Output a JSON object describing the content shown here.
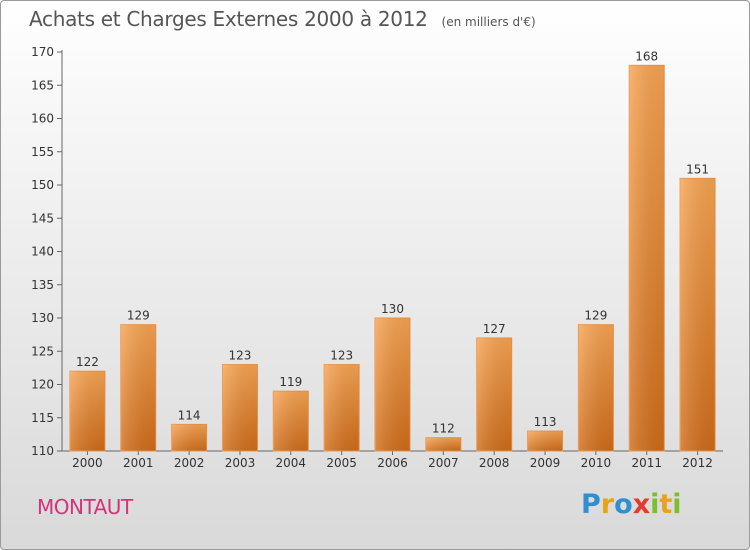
{
  "title": "Achats et Charges Externes 2000 à 2012",
  "unit": "(en milliers d'€)",
  "commune": "MONTAUT",
  "logo": {
    "text": "Proxiti",
    "colors": [
      "#2f8fd0",
      "#e8a317",
      "#2f8fd0",
      "#e8392b",
      "#7bbf2a",
      "#e8a317",
      "#7bbf2a"
    ]
  },
  "colors": {
    "bar_top": "#f7a452",
    "bar_bottom": "#d06c18",
    "axis": "#666666",
    "grid": "#ffffff",
    "text": "#333333"
  },
  "chart_data": {
    "type": "bar",
    "title": "Achats et Charges Externes 2000 à 2012",
    "categories": [
      "2000",
      "2001",
      "2002",
      "2003",
      "2004",
      "2005",
      "2006",
      "2007",
      "2008",
      "2009",
      "2010",
      "2011",
      "2012"
    ],
    "values": [
      122,
      129,
      114,
      123,
      119,
      123,
      130,
      112,
      127,
      113,
      129,
      168,
      151
    ],
    "ylim": [
      110,
      170
    ],
    "yticks": [
      110,
      115,
      120,
      125,
      130,
      135,
      140,
      145,
      150,
      155,
      160,
      165,
      170
    ],
    "grid": false,
    "data_labels": true
  }
}
